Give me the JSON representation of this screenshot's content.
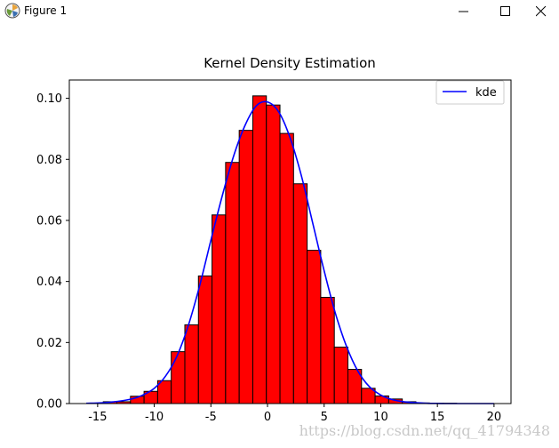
{
  "window": {
    "title": "Figure 1",
    "icons": {
      "app": "matplotlib-figure-icon",
      "minimize": "minimize-icon",
      "maximize": "maximize-icon",
      "close": "close-icon"
    }
  },
  "colors": {
    "bars": "#ff0000",
    "bar_edge": "#000000",
    "kde": "#0000ff"
  },
  "chart_data": {
    "type": "bar",
    "title": "Kernel Density Estimation",
    "xlabel": "",
    "ylabel": "",
    "xlim": [
      -17.5,
      21.5
    ],
    "ylim": [
      0,
      0.106
    ],
    "xticks": [
      -15,
      -10,
      -5,
      0,
      5,
      10,
      15,
      20
    ],
    "yticks": [
      0.0,
      0.02,
      0.04,
      0.06,
      0.08,
      0.1
    ],
    "ytick_labels": [
      "0.00",
      "0.02",
      "0.04",
      "0.06",
      "0.08",
      "0.10"
    ],
    "histogram": {
      "name": "",
      "bin_edges": [
        -14.5,
        -13.3,
        -12.1,
        -10.9,
        -9.7,
        -8.5,
        -7.3,
        -6.1,
        -4.9,
        -3.7,
        -2.5,
        -1.3,
        -0.1,
        1.1,
        2.3,
        3.5,
        4.7,
        5.9,
        7.1,
        8.3,
        9.5,
        10.7,
        11.9,
        13.1,
        14.3,
        15.5,
        16.7,
        17.9,
        19.1,
        20.3
      ],
      "values": [
        0.0006,
        0.0006,
        0.0024,
        0.004,
        0.0075,
        0.017,
        0.0258,
        0.0418,
        0.0618,
        0.079,
        0.0895,
        0.1008,
        0.0978,
        0.0885,
        0.072,
        0.0502,
        0.0348,
        0.0185,
        0.0112,
        0.005,
        0.0025,
        0.0015,
        0.0006,
        0.0002,
        0.0001,
        0.0001,
        0,
        0,
        0
      ]
    },
    "series": [
      {
        "name": "kde",
        "x": [
          -16,
          -14,
          -12,
          -11,
          -10,
          -9,
          -8,
          -7,
          -6,
          -5,
          -4,
          -3,
          -2,
          -1,
          0,
          1,
          2,
          3,
          4,
          5,
          6,
          7,
          8,
          9,
          10,
          11,
          12,
          13,
          14,
          15,
          16,
          18,
          20
        ],
        "y": [
          0.0001,
          0.0004,
          0.0015,
          0.0028,
          0.005,
          0.009,
          0.0155,
          0.0255,
          0.0385,
          0.0535,
          0.068,
          0.081,
          0.091,
          0.0975,
          0.0988,
          0.0955,
          0.087,
          0.0745,
          0.059,
          0.0435,
          0.0295,
          0.0185,
          0.0105,
          0.0055,
          0.0028,
          0.0013,
          0.0006,
          0.0003,
          0.0001,
          5e-05,
          0,
          0,
          0
        ]
      }
    ],
    "legend": {
      "position": "top-right",
      "entries": [
        "kde"
      ]
    },
    "grid": false
  },
  "watermark": "https://blog.csdn.net/qq_41794348"
}
